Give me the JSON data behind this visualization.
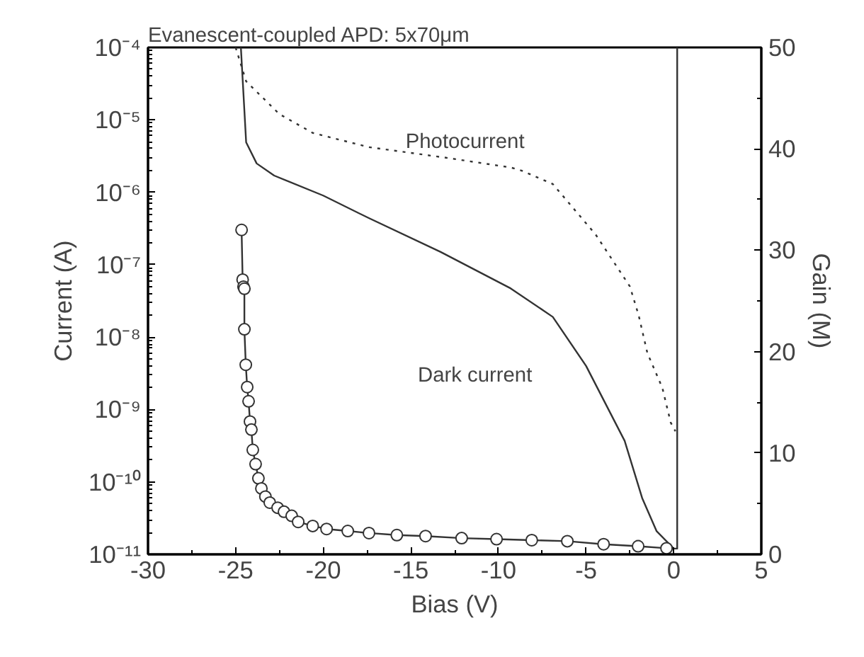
{
  "chart_data": {
    "type": "line",
    "title": "Evanescent-coupled APD: 5x70μm",
    "xlabel": "Bias (V)",
    "ylabel": "Current (A)",
    "y2label": "Gain (M)",
    "log": "y",
    "grid": false,
    "legend": false,
    "xlim": [
      -30,
      5
    ],
    "xticks": [
      -30,
      -25,
      -20,
      -15,
      -10,
      -5,
      0,
      5
    ],
    "ylim": [
      1e-11,
      0.0001
    ],
    "yticks": [
      {
        "value": 1e-11,
        "label": "10⁻¹¹"
      },
      {
        "value": 1e-10,
        "label": "10⁻¹⁰"
      },
      {
        "value": 1e-09,
        "label": "10⁻⁹"
      },
      {
        "value": 1e-08,
        "label": "10⁻⁸"
      },
      {
        "value": 1e-07,
        "label": "10⁻⁷"
      },
      {
        "value": 1e-06,
        "label": "10⁻⁶"
      },
      {
        "value": 1e-05,
        "label": "10⁻⁵"
      },
      {
        "value": 0.0001,
        "label": "10⁻⁴"
      }
    ],
    "y2lim": [
      0,
      50
    ],
    "y2ticks": [
      0,
      10,
      20,
      30,
      40,
      50
    ],
    "series": [
      {
        "name": "Photocurrent",
        "color": "#333333",
        "line_style": "dotted",
        "marker": "none",
        "x": [
          -25.0,
          -24.4,
          -22.5,
          -20.6,
          -17.4,
          -13.0,
          -9.3,
          -8.7,
          -6.9,
          -4.45,
          -2.5,
          -2.0,
          -1.5,
          -0.65,
          -0.17,
          0.1
        ],
        "values": [
          0.0001,
          3.4e-05,
          1.2e-05,
          6.6e-06,
          4.2e-06,
          3e-06,
          2.2e-06,
          2e-06,
          1.3e-06,
          2.6e-07,
          5e-08,
          2e-08,
          6e-09,
          2e-09,
          6.6e-10,
          5e-10
        ]
      },
      {
        "name": "Dark current",
        "color": "#333333",
        "line_style": "solid",
        "marker": "none",
        "x": [
          -24.7,
          -24.4,
          -23.8,
          -22.8,
          -20.0,
          -17.4,
          -13.3,
          -9.3,
          -6.9,
          -5.0,
          -2.8,
          -1.8,
          -0.98,
          0.0,
          0.2,
          0.2
        ],
        "values": [
          0.0001,
          4.9e-06,
          2.5e-06,
          1.7e-06,
          9e-07,
          4.4e-07,
          1.5e-07,
          4.7e-08,
          1.9e-08,
          4e-09,
          3.7e-10,
          6e-11,
          2.1e-11,
          1.2e-11,
          1.2e-11,
          0.0001
        ]
      },
      {
        "color": "#333333",
        "axis": "y2",
        "line_style": "solid",
        "marker": "circle",
        "x": [
          -24.66,
          -24.6,
          -24.55,
          -24.5,
          -24.5,
          -24.42,
          -24.34,
          -24.26,
          -24.18,
          -24.1,
          -24.02,
          -23.86,
          -23.7,
          -23.53,
          -23.3,
          -23.05,
          -22.6,
          -22.24,
          -21.8,
          -21.43,
          -20.6,
          -19.81,
          -18.6,
          -17.39,
          -15.8,
          -14.16,
          -12.1,
          -10.11,
          -8.1,
          -6.07,
          -4.0,
          -2.03,
          -0.41
        ],
        "values": [
          32.0,
          27.1,
          26.4,
          26.2,
          22.2,
          18.7,
          16.5,
          15.1,
          13.1,
          12.3,
          10.3,
          8.9,
          7.5,
          6.5,
          5.7,
          5.1,
          4.6,
          4.2,
          3.8,
          3.2,
          2.8,
          2.5,
          2.3,
          2.1,
          1.9,
          1.8,
          1.6,
          1.5,
          1.4,
          1.3,
          1.0,
          0.8,
          0.6
        ]
      }
    ]
  }
}
